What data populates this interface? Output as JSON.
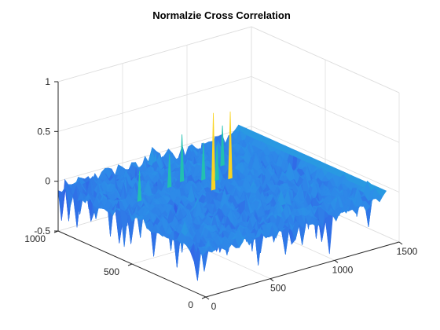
{
  "chart_data": {
    "type": "surface",
    "title": "Normalzie Cross Correlation",
    "xlabel": "",
    "ylabel": "",
    "zlabel": "",
    "xlim": [
      0,
      1500
    ],
    "ylim": [
      0,
      1000
    ],
    "zlim": [
      -0.5,
      1
    ],
    "x_ticks": [
      "0",
      "500",
      "1000",
      "1500"
    ],
    "y_ticks": [
      "0",
      "500",
      "1000"
    ],
    "z_ticks": [
      "-0.5",
      "0",
      "0.5",
      "1"
    ],
    "grid": true,
    "colormap": "parula",
    "surface_extent": {
      "x": [
        0,
        1400
      ],
      "y": [
        0,
        1000
      ]
    },
    "baseline_value": -0.05,
    "noise_range": [
      -0.5,
      0.15
    ],
    "peaks": [
      {
        "x": 700,
        "y": 560,
        "z": 0.72
      },
      {
        "x": 900,
        "y": 620,
        "z": 0.62
      },
      {
        "x": 230,
        "y": 650,
        "z": 0.25
      },
      {
        "x": 640,
        "y": 720,
        "z": 0.42
      },
      {
        "x": 1000,
        "y": 760,
        "z": 0.35
      },
      {
        "x": 820,
        "y": 640,
        "z": 0.3
      },
      {
        "x": 520,
        "y": 700,
        "z": 0.28
      },
      {
        "x": 760,
        "y": 680,
        "z": 0.32
      }
    ],
    "colors": {
      "low": "#3e26a8",
      "mid": "#2d8ee8",
      "high": "#f9d423",
      "peak_mid": "#22c0b0"
    }
  }
}
